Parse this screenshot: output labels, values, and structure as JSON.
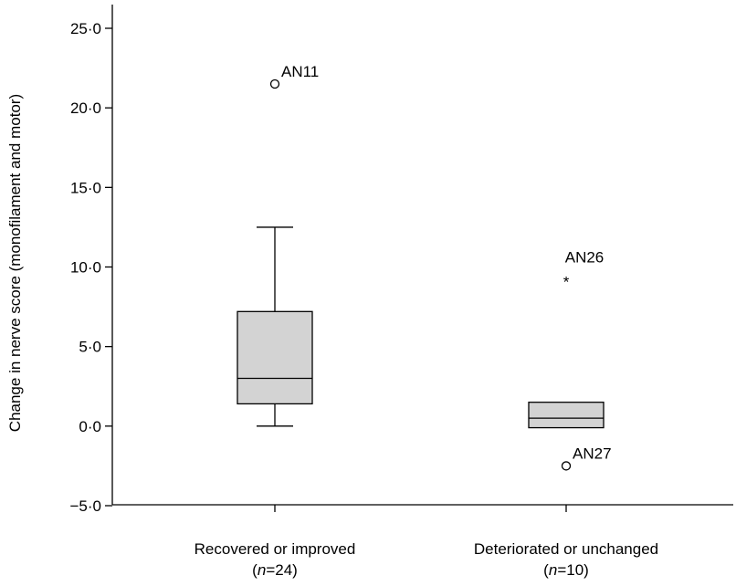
{
  "chart_data": {
    "type": "box",
    "ylabel": "Change in nerve score (monofilament and motor)",
    "ylim": [
      -5,
      25
    ],
    "y_ticks": [
      {
        "value": -5,
        "label": "−5·0"
      },
      {
        "value": 0,
        "label": "0·0"
      },
      {
        "value": 5,
        "label": "5·0"
      },
      {
        "value": 10,
        "label": "10·0"
      },
      {
        "value": 15,
        "label": "15·0"
      },
      {
        "value": 20,
        "label": "20·0"
      },
      {
        "value": 25,
        "label": "25·0"
      }
    ],
    "groups": [
      {
        "label": "Recovered or improved",
        "n_text": "(n=24)",
        "n_prefix": "(",
        "n_italic": "n",
        "n_suffix": "=24)",
        "box_color": "#d3d3d3",
        "whisker_low": 0.0,
        "q1": 1.4,
        "median": 3.0,
        "q3": 7.2,
        "whisker_high": 12.5,
        "outliers": [
          {
            "value": 21.5,
            "marker": "circle",
            "label": "AN11"
          }
        ]
      },
      {
        "label": "Deteriorated or unchanged",
        "n_text": "(n=10)",
        "n_prefix": "(",
        "n_italic": "n",
        "n_suffix": "=10)",
        "box_color": "#d3d3d3",
        "whisker_low": -0.1,
        "q1": -0.1,
        "median": 0.5,
        "q3": 1.5,
        "whisker_high": 1.5,
        "outliers": [
          {
            "value": 9.3,
            "marker": "star",
            "label": "AN26"
          },
          {
            "value": -2.5,
            "marker": "circle",
            "label": "AN27"
          }
        ]
      }
    ]
  }
}
